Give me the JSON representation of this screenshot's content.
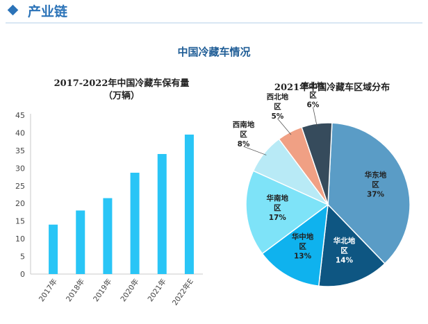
{
  "header": {
    "title": "产业链",
    "accent": "#2b73b8"
  },
  "main_title": "中国冷藏车情况",
  "chart_data": [
    {
      "type": "bar",
      "title": "2017-2022年中国冷藏车保有量\n（万辆）",
      "categories": [
        "2017年",
        "2018年",
        "2019年",
        "2020年",
        "2021年",
        "2022年E"
      ],
      "values": [
        14,
        18,
        21.5,
        28.7,
        34,
        39.5
      ],
      "ylim": [
        0,
        45
      ],
      "yticks": [
        0,
        5,
        10,
        15,
        20,
        25,
        30,
        35,
        40,
        45
      ],
      "color": "#29c5f6"
    },
    {
      "type": "pie",
      "title": "2021年中国冷藏车区域分布",
      "slices": [
        {
          "label": "华东地\n区",
          "value": 37,
          "pct": "37%",
          "color": "#5a9cc6"
        },
        {
          "label": "华北地\n区",
          "value": 14,
          "pct": "14%",
          "color": "#0e5682"
        },
        {
          "label": "华中地\n区",
          "value": 13,
          "pct": "13%",
          "color": "#0fb2ee"
        },
        {
          "label": "华南地\n区",
          "value": 17,
          "pct": "17%",
          "color": "#7ee3f8"
        },
        {
          "label": "西南地\n区",
          "value": 8,
          "pct": "8%",
          "color": "#b8eaf6"
        },
        {
          "label": "西北地\n区",
          "value": 5,
          "pct": "5%",
          "color": "#f0a084"
        },
        {
          "label": "东北地\n区",
          "value": 6,
          "pct": "6%",
          "color": "#364b5c"
        }
      ]
    }
  ]
}
